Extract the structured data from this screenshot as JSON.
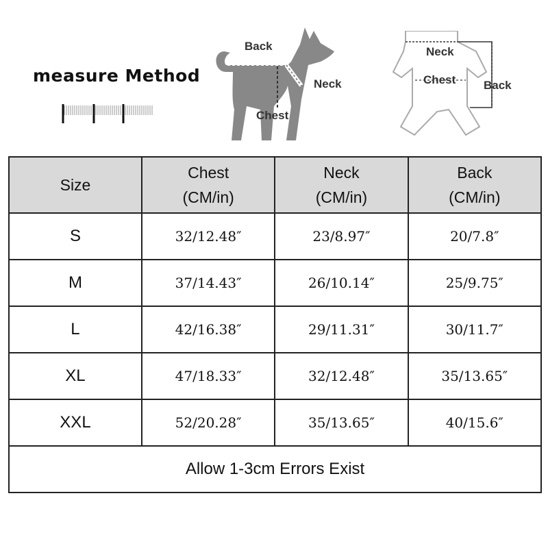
{
  "header": {
    "title": "measure Method",
    "dog_labels": {
      "back": "Back",
      "neck": "Neck",
      "chest": "Chest"
    },
    "garment_labels": {
      "neck": "Neck",
      "chest": "Chest",
      "back": "Back"
    }
  },
  "table": {
    "columns": [
      {
        "label": "Size",
        "unit": ""
      },
      {
        "label": "Chest",
        "unit": "(CM/in)"
      },
      {
        "label": "Neck",
        "unit": "(CM/in)"
      },
      {
        "label": "Back",
        "unit": "(CM/in)"
      }
    ],
    "rows": [
      {
        "size": "S",
        "chest": "32/12.48″",
        "neck": "23/8.97″",
        "back": "20/7.8″"
      },
      {
        "size": "M",
        "chest": "37/14.43″",
        "neck": "26/10.14″",
        "back": "25/9.75″"
      },
      {
        "size": "L",
        "chest": "42/16.38″",
        "neck": "29/11.31″",
        "back": "30/11.7″"
      },
      {
        "size": "XL",
        "chest": "47/18.33″",
        "neck": "32/12.48″",
        "back": "35/13.65″"
      },
      {
        "size": "XXL",
        "chest": "52/20.28″",
        "neck": "35/13.65″",
        "back": "40/15.6″"
      }
    ],
    "footer": "Allow 1-3cm Errors Exist",
    "header_bg": "#d9d9d9"
  }
}
